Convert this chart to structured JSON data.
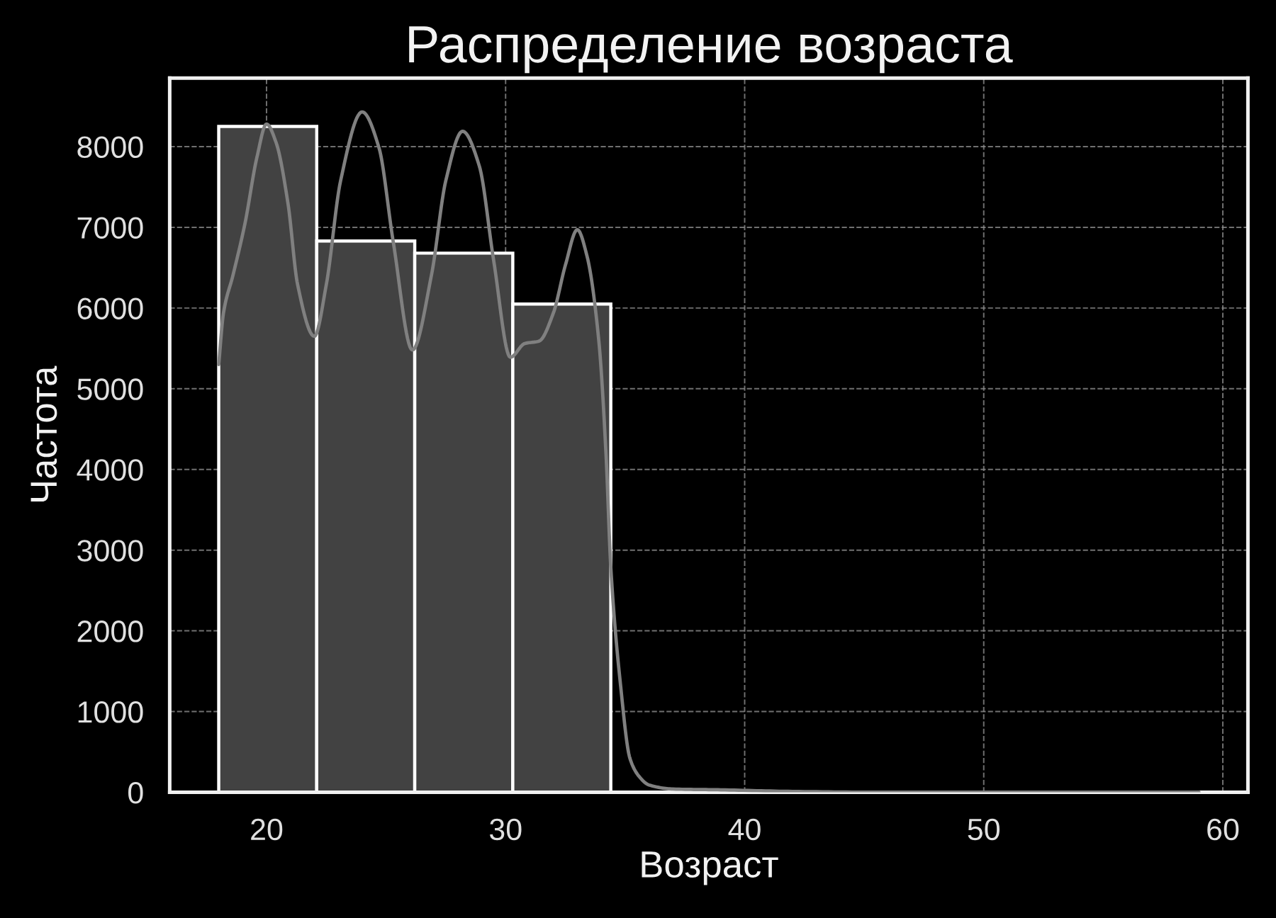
{
  "chart_data": {
    "type": "histogram",
    "title": "Распределение возраста",
    "xlabel": "Возраст",
    "ylabel": "Частота",
    "bins": [
      18,
      22.1,
      26.2,
      30.3,
      34.4,
      38.5,
      42.6,
      46.7,
      50.8,
      54.9,
      59
    ],
    "series": [
      {
        "color": "#424242",
        "values": [
          8250,
          6830,
          6680,
          6050,
          0,
          0,
          0,
          0,
          0,
          0
        ]
      },
      {
        "type": "line",
        "color": "#808080",
        "x": [
          18,
          18.2,
          18.6,
          19.1,
          19.6,
          20.0,
          20.4,
          20.9,
          21.3,
          22.0,
          22.5,
          23.1,
          24.0,
          24.7,
          25.3,
          26.1,
          26.9,
          27.5,
          28.2,
          28.9,
          29.5,
          30.2,
          30.8,
          31.4,
          32.0,
          32.5,
          33.0,
          33.4,
          33.9,
          34.2,
          34.4,
          34.8,
          35.2,
          35.6,
          36.0,
          37.0,
          39.0,
          42.0,
          46.0,
          50.0,
          55.0,
          59.0
        ],
        "values": [
          5300,
          5940,
          6410,
          7050,
          7870,
          8280,
          8050,
          7290,
          6290,
          5650,
          6290,
          7580,
          8430,
          7990,
          6820,
          5480,
          6410,
          7580,
          8190,
          7760,
          6590,
          5390,
          5560,
          5590,
          5940,
          6530,
          6970,
          6650,
          5590,
          4190,
          2790,
          1350,
          420,
          190,
          90,
          40,
          30,
          10,
          0,
          0,
          0,
          0
        ]
      }
    ],
    "xlim": [
      15.95,
      61.05
    ],
    "xticks": [
      20,
      30,
      40,
      50,
      60
    ],
    "ylim": [
      0,
      8850
    ],
    "yticks": [
      0,
      1000,
      2000,
      3000,
      4000,
      5000,
      6000,
      7000,
      8000
    ],
    "grid": true
  }
}
